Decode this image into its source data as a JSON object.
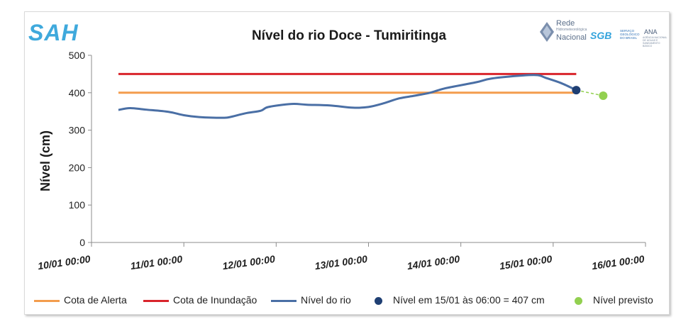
{
  "header": {
    "logo_left": "SAH",
    "logo_rede_line1": "Rede",
    "logo_rede_sub": "Hidrometeorológica",
    "logo_rede_line2": "Nacional",
    "logo_sgb": "SGB",
    "logo_sgb_sub": "SERVIÇO GEOLÓGICO DO BRASIL",
    "logo_ana": "ANA",
    "logo_ana_sub": "AGÊNCIA NACIONAL DE ÁGUAS E SANEAMENTO BÁSICO"
  },
  "colors": {
    "alerta": "#f39c4d",
    "inundacao": "#d9242b",
    "nivel": "#4a6fa5",
    "ponto_atual": "#1f3f73",
    "previsto": "#92d050"
  },
  "chart_data": {
    "type": "line",
    "title": "Nível do rio Doce - Tumiritinga",
    "xlabel": "",
    "ylabel": "Nível (cm)",
    "ylim": [
      0,
      500
    ],
    "yticks": [
      "0",
      "100",
      "200",
      "300",
      "400",
      "500"
    ],
    "xlim": [
      0,
      144
    ],
    "x_unit": "hours since 10/01 00:00",
    "xticks": [
      {
        "x": 0,
        "label": "10/01 00:00"
      },
      {
        "x": 24,
        "label": "11/01 00:00"
      },
      {
        "x": 48,
        "label": "12/01 00:00"
      },
      {
        "x": 72,
        "label": "13/01 00:00"
      },
      {
        "x": 96,
        "label": "14/01 00:00"
      },
      {
        "x": 120,
        "label": "15/01 00:00"
      },
      {
        "x": 144,
        "label": "16/01 00:00"
      }
    ],
    "grid": false,
    "legend_position": "bottom",
    "series": [
      {
        "name": "Cota de Alerta",
        "kind": "hline",
        "x": [
          7,
          126
        ],
        "y": [
          400,
          400
        ]
      },
      {
        "name": "Cota de Inundação",
        "kind": "hline",
        "x": [
          7,
          126
        ],
        "y": [
          450,
          450
        ]
      },
      {
        "name": "Nível do rio",
        "kind": "line",
        "x": [
          7,
          10,
          14,
          20,
          24,
          28,
          34,
          36,
          40,
          44,
          46,
          52,
          56,
          62,
          68,
          72,
          76,
          80,
          84,
          88,
          92,
          100,
          104,
          112,
          116,
          118,
          122,
          126
        ],
        "y": [
          354,
          359,
          355,
          349,
          340,
          335,
          333,
          335,
          345,
          352,
          362,
          370,
          368,
          366,
          360,
          362,
          372,
          385,
          392,
          400,
          412,
          428,
          438,
          446,
          447,
          440,
          426,
          407
        ]
      },
      {
        "name": "Nível em 15/01 às 06:00 = 407 cm",
        "kind": "point",
        "x": [
          126
        ],
        "y": [
          407
        ]
      },
      {
        "name": "Nível previsto",
        "kind": "forecast",
        "x": [
          126,
          133
        ],
        "y": [
          407,
          392
        ]
      }
    ]
  }
}
